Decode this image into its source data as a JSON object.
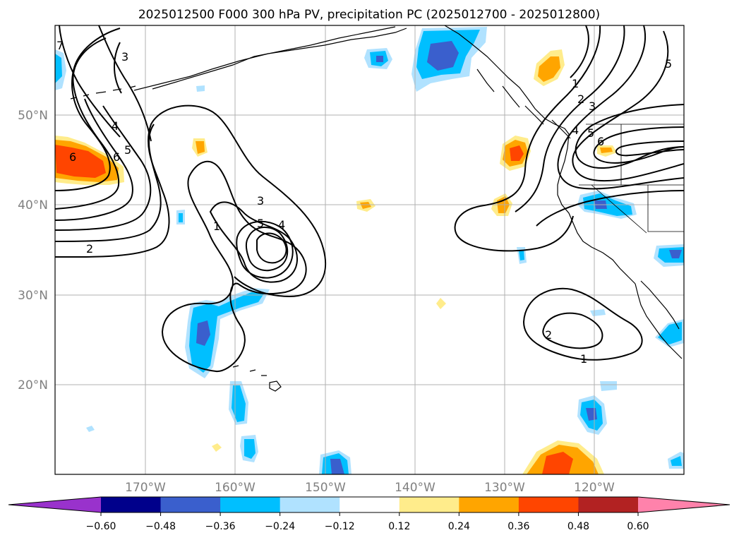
{
  "title": "2025012500 F000 300 hPa PV, precipitation PC (2025012700 - 2025012800)",
  "latitude_labels": [
    "50°N",
    "40°N",
    "30°N",
    "20°N"
  ],
  "longitude_labels": [
    "170°W",
    "160°W",
    "150°W",
    "140°W",
    "130°W",
    "120°W"
  ],
  "colorbar": {
    "tick_labels": [
      "−0.60",
      "−0.48",
      "−0.36",
      "−0.24",
      "−0.12",
      "0.12",
      "0.24",
      "0.36",
      "0.48",
      "0.60"
    ],
    "colors": [
      "#9932CC",
      "#00008B",
      "#3A5FCD",
      "#00BFFF",
      "#B0E2FF",
      "#FFFFFF",
      "#FFEC8B",
      "#FFA500",
      "#FF4500",
      "#B22222",
      "#FF82AB"
    ]
  },
  "contour_labels": [
    {
      "text": "7"
    },
    {
      "text": "3"
    },
    {
      "text": "4"
    },
    {
      "text": "5"
    },
    {
      "text": "6"
    },
    {
      "text": "6"
    },
    {
      "text": "2"
    },
    {
      "text": "1"
    },
    {
      "text": "3"
    },
    {
      "text": "5"
    },
    {
      "text": "4"
    },
    {
      "text": "5"
    },
    {
      "text": "1"
    },
    {
      "text": "2"
    },
    {
      "text": "3"
    },
    {
      "text": "4"
    },
    {
      "text": "5"
    },
    {
      "text": "6"
    },
    {
      "text": "2"
    },
    {
      "text": "1"
    }
  ],
  "precipitation_colors": {
    "light_blue": "#B0E2FF",
    "blue": "#00BFFF",
    "royal_blue": "#3A5FCD",
    "yellow": "#FFEC8B",
    "orange": "#FFA500",
    "red_orange": "#FF4500"
  }
}
